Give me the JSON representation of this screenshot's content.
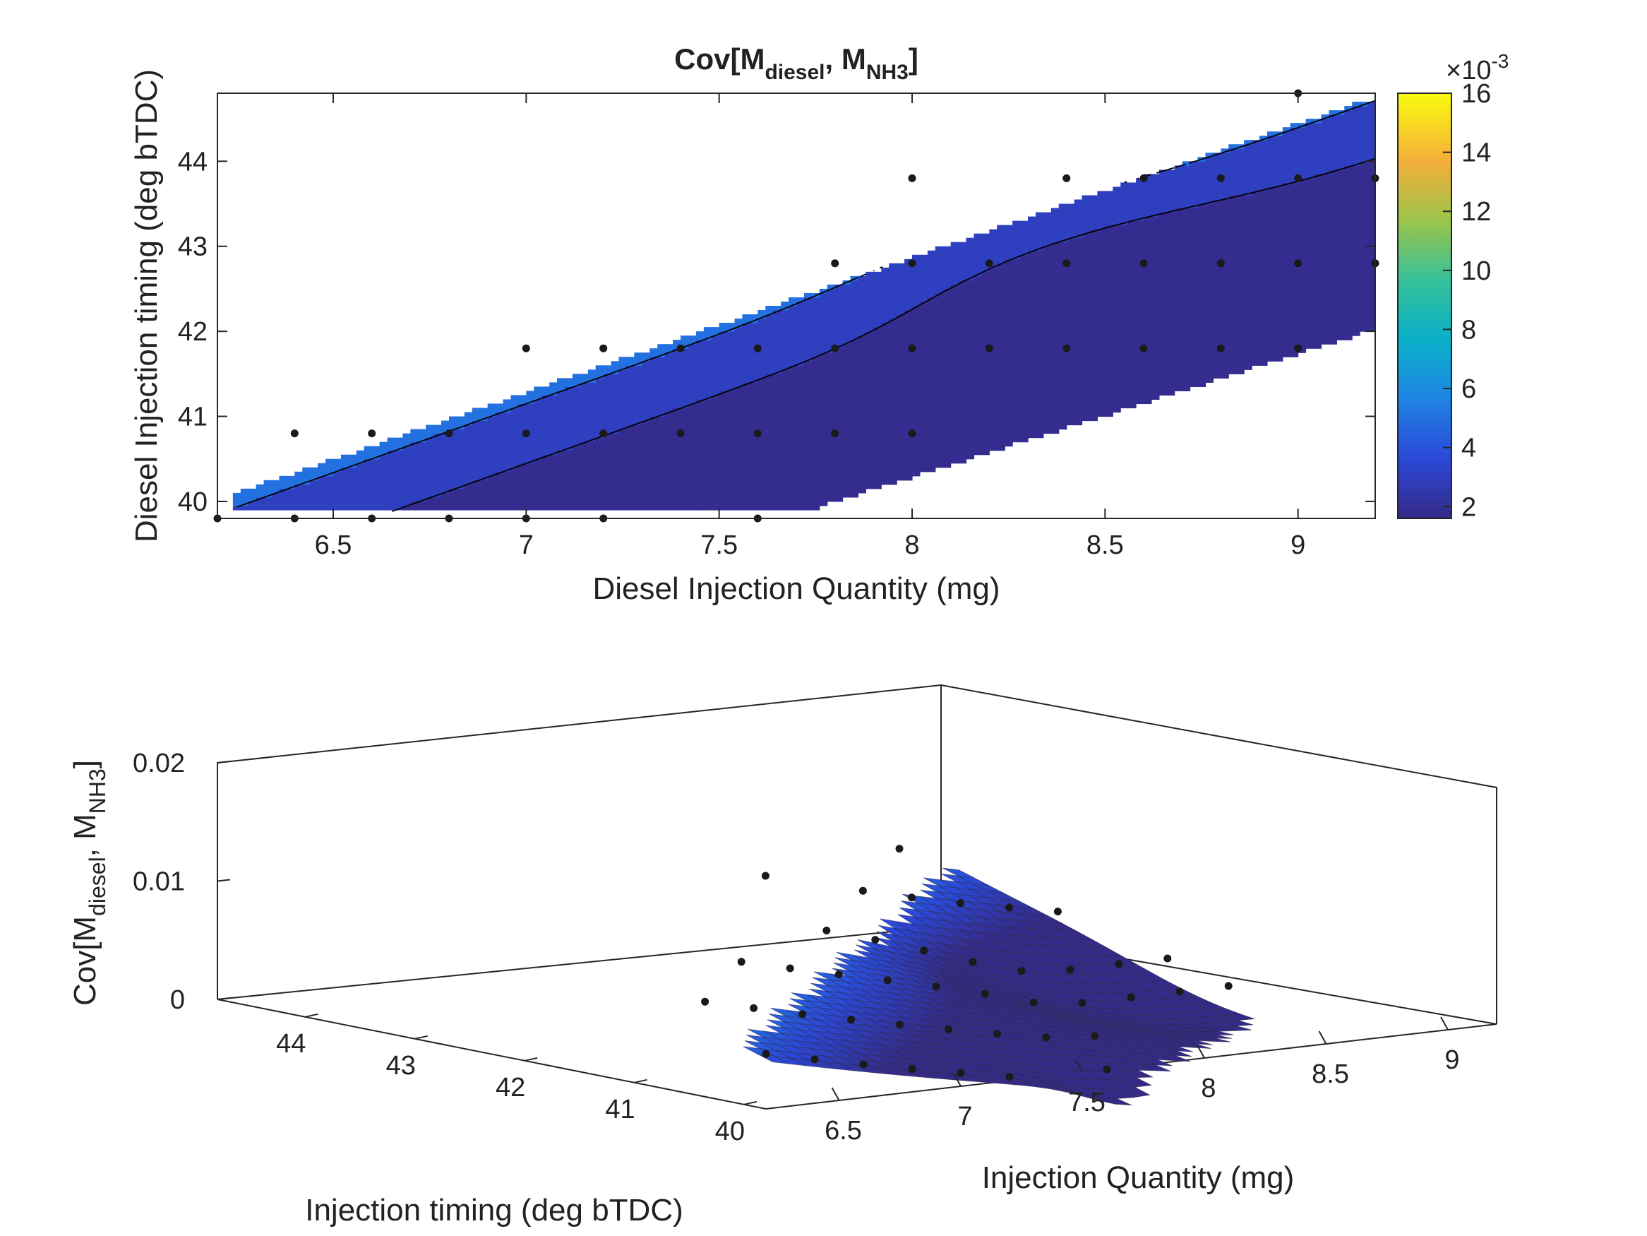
{
  "colors": {
    "colormap": "parula",
    "axis": "#262626",
    "marker": "#1a1a1a",
    "contour_line": "#000000"
  },
  "chart_data": [
    {
      "type": "contour",
      "title": {
        "main": "Cov[M",
        "sub1": "diesel",
        "mid": ", M",
        "sub2": "NH3",
        "end": "]"
      },
      "xlabel": "Diesel Injection Quantity (mg)",
      "ylabel": "Diesel Injection timing (deg bTDC)",
      "xlim": [
        6.2,
        9.2
      ],
      "ylim": [
        39.8,
        44.8
      ],
      "xticks": [
        6.5,
        7,
        7.5,
        8,
        8.5,
        9
      ],
      "xtick_labels": [
        "6.5",
        "7",
        "7.5",
        "8",
        "8.5",
        "9"
      ],
      "yticks": [
        40,
        41,
        42,
        43,
        44
      ],
      "ytick_labels": [
        "40",
        "41",
        "42",
        "43",
        "44"
      ],
      "colorbar": {
        "range": [
          1.6,
          16
        ],
        "ticks": [
          2,
          4,
          6,
          8,
          10,
          12,
          14,
          16
        ],
        "tick_labels": [
          "2",
          "4",
          "6",
          "8",
          "10",
          "12",
          "14",
          "16"
        ],
        "multiplier_base": "×10",
        "multiplier_exp": "-3"
      },
      "contour_levels": [
        2,
        4,
        6,
        8,
        10,
        12,
        14,
        16
      ],
      "points": [
        [
          6.2,
          39.8
        ],
        [
          6.4,
          39.8
        ],
        [
          6.6,
          39.8
        ],
        [
          6.8,
          39.8
        ],
        [
          7.0,
          39.8
        ],
        [
          7.2,
          39.8
        ],
        [
          7.6,
          39.8
        ],
        [
          6.4,
          40.8
        ],
        [
          6.6,
          40.8
        ],
        [
          6.8,
          40.8
        ],
        [
          7.0,
          40.8
        ],
        [
          7.2,
          40.8
        ],
        [
          7.4,
          40.8
        ],
        [
          7.6,
          40.8
        ],
        [
          7.8,
          40.8
        ],
        [
          8.0,
          40.8
        ],
        [
          7.0,
          41.8
        ],
        [
          7.2,
          41.8
        ],
        [
          7.4,
          41.8
        ],
        [
          7.6,
          41.8
        ],
        [
          7.8,
          41.8
        ],
        [
          8.0,
          41.8
        ],
        [
          8.2,
          41.8
        ],
        [
          8.4,
          41.8
        ],
        [
          8.6,
          41.8
        ],
        [
          8.8,
          41.8
        ],
        [
          9.0,
          41.8
        ],
        [
          7.8,
          42.8
        ],
        [
          8.0,
          42.8
        ],
        [
          8.2,
          42.8
        ],
        [
          8.4,
          42.8
        ],
        [
          8.6,
          42.8
        ],
        [
          8.8,
          42.8
        ],
        [
          9.0,
          42.8
        ],
        [
          9.2,
          42.8
        ],
        [
          8.0,
          43.8
        ],
        [
          8.4,
          43.8
        ],
        [
          8.6,
          43.8
        ],
        [
          8.8,
          43.8
        ],
        [
          9.0,
          43.8
        ],
        [
          9.2,
          43.8
        ],
        [
          9.0,
          44.8
        ]
      ]
    },
    {
      "type": "surface",
      "zlabel": {
        "main": "Cov[M",
        "sub1": "diesel",
        "mid": ", M",
        "sub2": "NH3",
        "end": "]"
      },
      "xlabel": "Injection Quantity (mg)",
      "ylabel": "Injection timing (deg bTDC)",
      "xlim": [
        6.2,
        9.2
      ],
      "ylim": [
        39.8,
        44.8
      ],
      "zlim": [
        0,
        0.02
      ],
      "xticks": [
        6.5,
        7,
        7.5,
        8,
        8.5,
        9
      ],
      "xtick_labels": [
        "6.5",
        "7",
        "7.5",
        "8",
        "8.5",
        "9"
      ],
      "yticks": [
        40,
        41,
        42,
        43,
        44
      ],
      "ytick_labels": [
        "40",
        "41",
        "42",
        "43",
        "44"
      ],
      "zticks": [
        0,
        0.01,
        0.02
      ],
      "ztick_labels": [
        "0",
        "0.01",
        "0.02"
      ]
    }
  ]
}
